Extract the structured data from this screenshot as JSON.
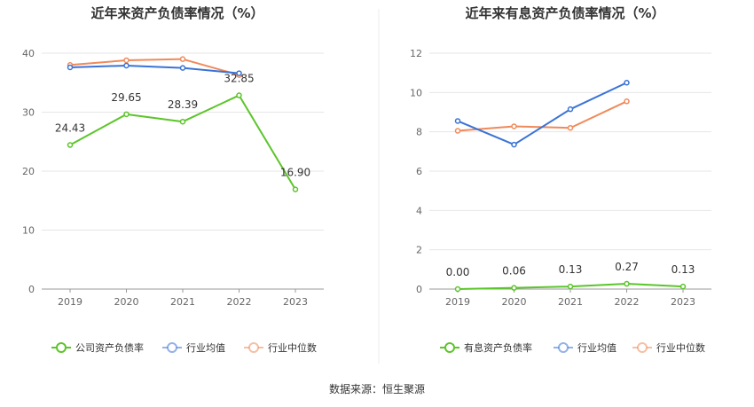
{
  "source": "数据来源：恒生聚源",
  "colors": {
    "company": "#5cc52a",
    "industry_avg": "#3a73d6",
    "industry_median": "#ef8a5b",
    "grid": "#e6e6e6",
    "axis": "#999999"
  },
  "chart_data": [
    {
      "type": "line",
      "title": "近年来资产负债率情况（%）",
      "categories": [
        "2019",
        "2020",
        "2021",
        "2022",
        "2023"
      ],
      "ylim": [
        0,
        40
      ],
      "yticks": [
        "0",
        "10",
        "20",
        "30",
        "40"
      ],
      "grid": true,
      "legend_position": "bottom",
      "series": [
        {
          "name": "公司资产负债率",
          "values": [
            24.43,
            29.65,
            28.39,
            32.85,
            16.9
          ],
          "labels": [
            "24.43",
            "29.65",
            "28.39",
            "32.85",
            "16.90"
          ]
        },
        {
          "name": "行业均值",
          "values": [
            37.6,
            37.9,
            37.5,
            36.6,
            null
          ]
        },
        {
          "name": "行业中位数",
          "values": [
            38.0,
            38.8,
            39.0,
            36.3,
            null
          ]
        }
      ]
    },
    {
      "type": "line",
      "title": "近年来有息资产负债率情况（%）",
      "categories": [
        "2019",
        "2020",
        "2021",
        "2022",
        "2023"
      ],
      "ylim": [
        0,
        12
      ],
      "yticks": [
        "0",
        "2",
        "4",
        "6",
        "8",
        "10",
        "12"
      ],
      "grid": true,
      "legend_position": "bottom",
      "series": [
        {
          "name": "有息资产负债率",
          "values": [
            0.0,
            0.06,
            0.13,
            0.27,
            0.13
          ],
          "labels": [
            "0.00",
            "0.06",
            "0.13",
            "0.27",
            "0.13"
          ]
        },
        {
          "name": "行业均值",
          "values": [
            8.55,
            7.35,
            9.15,
            10.5,
            null
          ]
        },
        {
          "name": "行业中位数",
          "values": [
            8.05,
            8.28,
            8.2,
            9.55,
            null
          ]
        }
      ]
    }
  ]
}
